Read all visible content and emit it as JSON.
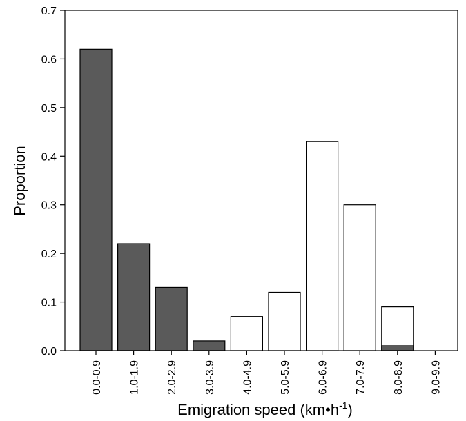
{
  "chart_data": {
    "type": "bar",
    "title": "",
    "xlabel": "Emigration speed (km•h",
    "xlabel_superscript": "-1",
    "xlabel_suffix": ")",
    "ylabel": "Proportion",
    "ylim": [
      0,
      0.7
    ],
    "yticks": [
      "0.0",
      "0.1",
      "0.2",
      "0.3",
      "0.4",
      "0.5",
      "0.6",
      "0.7"
    ],
    "categories": [
      "0.0-0.9",
      "1.0-1.9",
      "2.0-2.9",
      "3.0-3.9",
      "4.0-4.9",
      "5.0-5.9",
      "6.0-6.9",
      "7.0-7.9",
      "8.0-8.9",
      "9.0-9.9"
    ],
    "grid": false,
    "legend": "none",
    "series": [
      {
        "color": "#5a5a5a",
        "values": [
          0.62,
          0.22,
          0.13,
          0.02,
          0,
          0,
          0,
          0,
          0.01,
          0
        ]
      },
      {
        "color": "#ffffff",
        "values": [
          0,
          0,
          0,
          0,
          0.07,
          0.12,
          0.43,
          0.3,
          0.09,
          0
        ]
      }
    ]
  }
}
